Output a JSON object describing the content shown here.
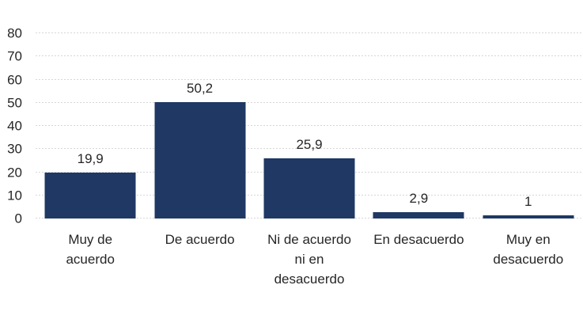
{
  "chart_data": {
    "type": "bar",
    "title": "",
    "xlabel": "",
    "ylabel": "",
    "categories": [
      "Muy de acuerdo",
      "De acuerdo",
      "Ni de acuerdo ni en desacuerdo",
      "En desacuerdo",
      "Muy en desacuerdo"
    ],
    "category_lines": [
      [
        "Muy de",
        "acuerdo"
      ],
      [
        "De acuerdo"
      ],
      [
        "Ni de acuerdo",
        "ni en",
        "desacuerdo"
      ],
      [
        "En desacuerdo"
      ],
      [
        "Muy en",
        "desacuerdo"
      ]
    ],
    "values": [
      19.9,
      50.2,
      25.9,
      2.9,
      1
    ],
    "value_labels": [
      "19,9",
      "50,2",
      "25,9",
      "2,9",
      "1"
    ],
    "ylim": [
      0,
      80
    ],
    "yticks": [
      0,
      10,
      20,
      30,
      40,
      50,
      60,
      70,
      80
    ],
    "grid": true,
    "legend": false,
    "colors": {
      "bar": "#1F3864",
      "gridline": "#D6D6D6",
      "text": "#262626",
      "background": "#FFFFFF"
    }
  }
}
